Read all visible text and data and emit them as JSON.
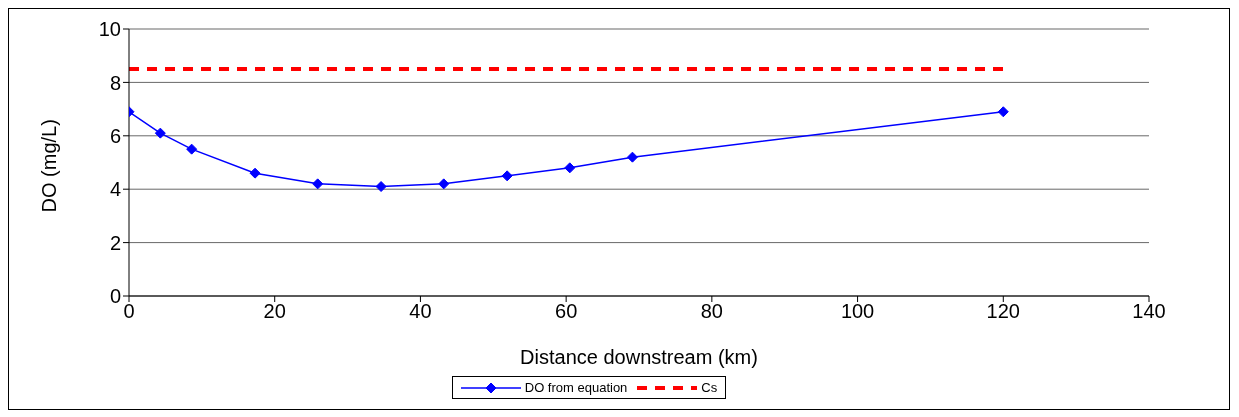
{
  "chart_data": {
    "type": "line",
    "xlabel": "Distance downstream (km)",
    "ylabel": "DO (mg/L)",
    "xlim": [
      0,
      140
    ],
    "xticks": [
      0,
      20,
      40,
      60,
      80,
      100,
      120,
      140
    ],
    "ylim": [
      0,
      10
    ],
    "yticks": [
      0,
      2,
      4,
      6,
      8,
      10
    ],
    "grid": "y",
    "legend": "bottom",
    "series": [
      {
        "name": "DO from equation",
        "color": "#0000ff",
        "marker": "diamond",
        "line_style": "solid",
        "x": [
          0,
          4.3,
          8.6,
          17.3,
          25.9,
          34.6,
          43.2,
          51.9,
          60.5,
          69.1,
          120
        ],
        "values": [
          6.9,
          6.1,
          5.5,
          4.6,
          4.2,
          4.1,
          4.2,
          4.5,
          4.8,
          5.2,
          6.9
        ]
      },
      {
        "name": "Cs",
        "color": "#ff0000",
        "marker": "none",
        "line_style": "dashed",
        "x": [
          0,
          120
        ],
        "values": [
          8.5,
          8.5
        ]
      }
    ]
  }
}
